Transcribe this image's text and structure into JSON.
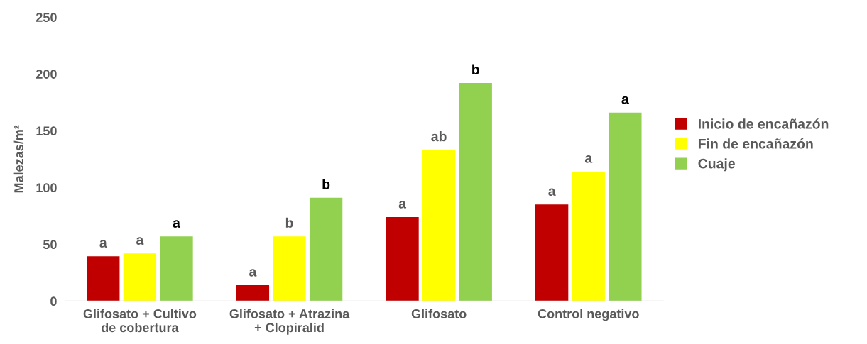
{
  "chart_data": {
    "type": "bar",
    "ylabel": "Malezas/m²",
    "categories": [
      "Glifosato + Cultivo\nde cobertura",
      "Glifosato + Atrazina\n+ Clopiralid",
      "Glifosato",
      "Control negativo"
    ],
    "series": [
      {
        "name": "Inicio de encañazón",
        "color": "#c00000",
        "values": [
          39.5,
          14,
          74,
          85
        ],
        "value_labels": [
          "a",
          "a",
          "a",
          "a"
        ]
      },
      {
        "name": "Fin de encañazón",
        "color": "#ffff00",
        "values": [
          42,
          57,
          133,
          114
        ],
        "value_labels": [
          "a",
          "b",
          "ab",
          "a"
        ]
      },
      {
        "name": "Cuaje",
        "color": "#92d050",
        "values": [
          57,
          91,
          192,
          166
        ],
        "value_labels": [
          "a",
          "b",
          "b",
          "a"
        ]
      }
    ],
    "ylim": [
      0,
      250
    ],
    "yticks": [
      0,
      50,
      100,
      150,
      200,
      250
    ],
    "grid": false,
    "legend": "right"
  }
}
